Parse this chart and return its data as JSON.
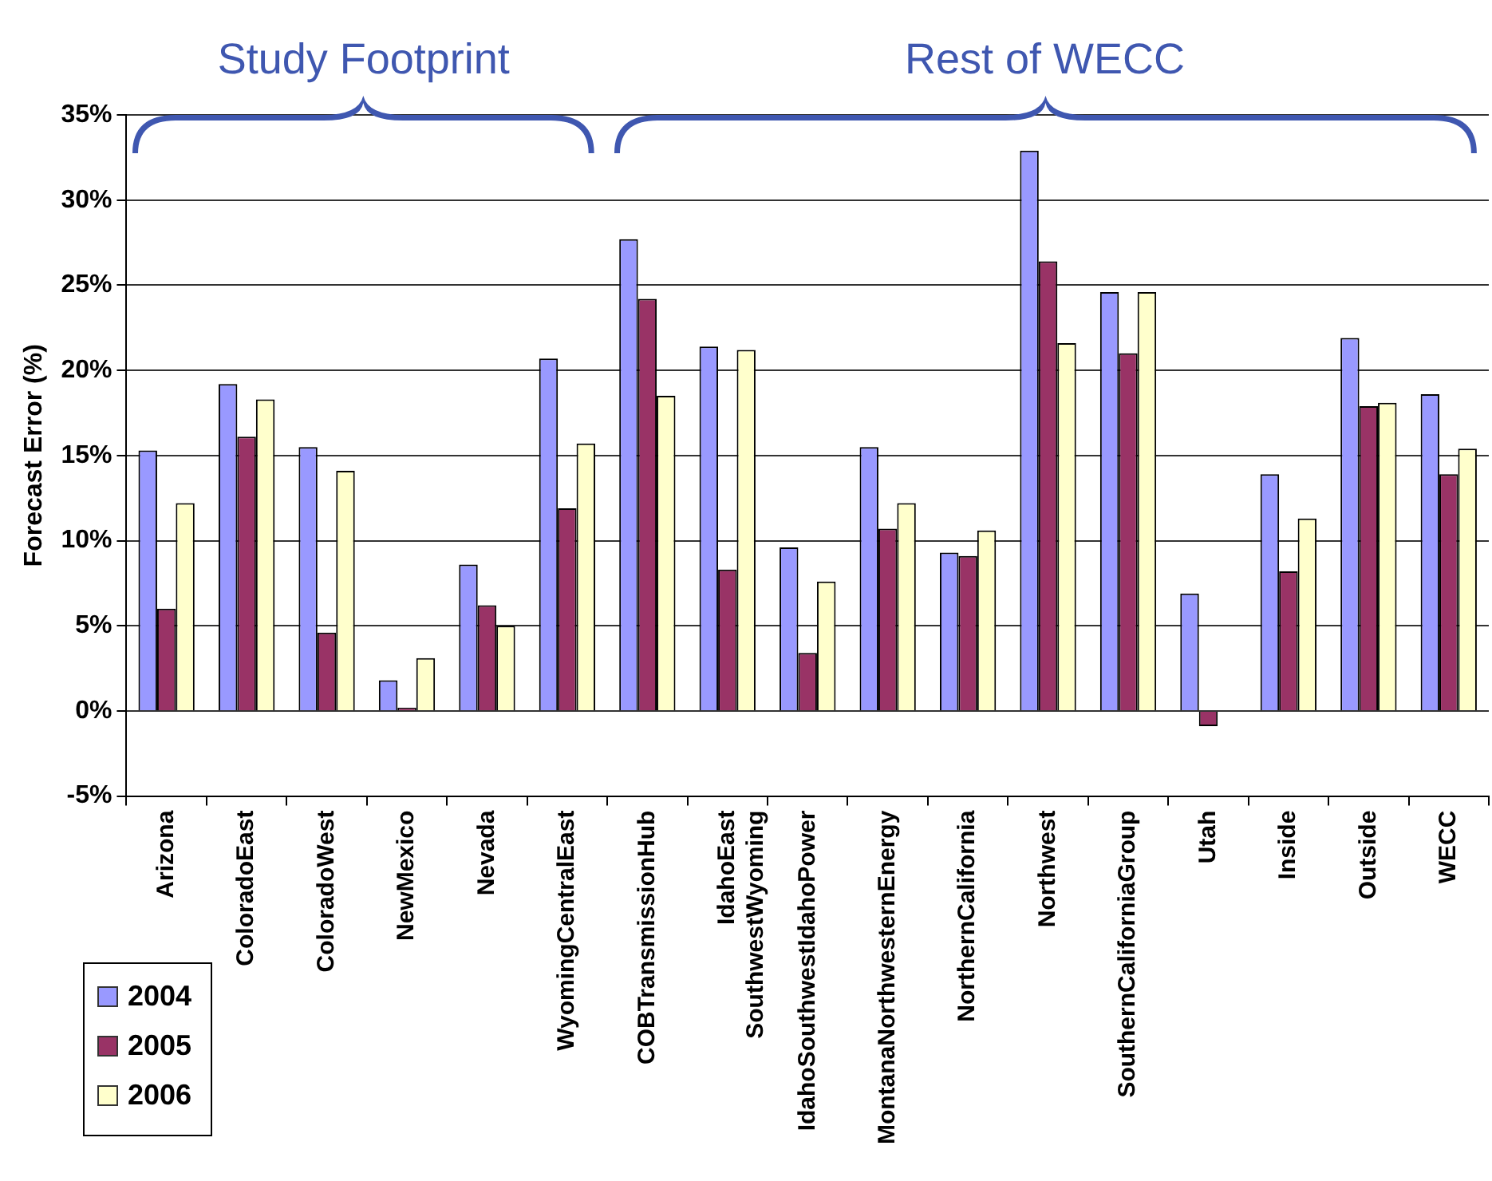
{
  "chart_data": {
    "type": "bar",
    "ylabel": "Forecast Error (%)",
    "annotations": [
      "Study Footprint",
      "Rest of WECC"
    ],
    "categories": [
      "Arizona",
      "ColoradoEast",
      "ColoradoWest",
      "NewMexico",
      "Nevada",
      "WyomingCentralEast",
      "COBTransmissionHub",
      "IdahoEast SouthwestWyoming",
      "IdahoSouthwestIdahoPower",
      "MontanaNorthwesternEnergy",
      "NorthernCalifornia",
      "Northwest",
      "SouthernCaliforniaGroup",
      "Utah",
      "Inside",
      "Outside",
      "WECC"
    ],
    "series": [
      {
        "name": "2004",
        "color": "#9999ff",
        "values": [
          15.3,
          19.2,
          15.5,
          1.8,
          8.6,
          20.7,
          27.7,
          21.4,
          9.6,
          15.5,
          9.3,
          32.9,
          24.6,
          6.9,
          13.9,
          21.9,
          18.6
        ]
      },
      {
        "name": "2005",
        "color": "#993366",
        "values": [
          6.0,
          16.1,
          4.6,
          0.2,
          6.2,
          11.9,
          24.2,
          8.3,
          3.4,
          10.7,
          9.1,
          26.4,
          21.0,
          -0.9,
          8.2,
          17.9,
          13.9
        ]
      },
      {
        "name": "2006",
        "color": "#ffffcc",
        "values": [
          12.2,
          18.3,
          14.1,
          3.1,
          5.0,
          15.7,
          18.5,
          21.2,
          7.6,
          12.2,
          10.6,
          21.6,
          24.6,
          null,
          11.3,
          18.1,
          15.4
        ]
      }
    ],
    "ylim": [
      -5,
      35
    ],
    "yticks": [
      {
        "value": -5,
        "label": "-5%"
      },
      {
        "value": 0,
        "label": "0%"
      },
      {
        "value": 5,
        "label": "5%"
      },
      {
        "value": 10,
        "label": "10%"
      },
      {
        "value": 15,
        "label": "15%"
      },
      {
        "value": 20,
        "label": "20%"
      },
      {
        "value": 25,
        "label": "25%"
      },
      {
        "value": 30,
        "label": "30%"
      },
      {
        "value": 35,
        "label": "35%"
      }
    ],
    "grid": "y",
    "legend": "bottom left"
  }
}
